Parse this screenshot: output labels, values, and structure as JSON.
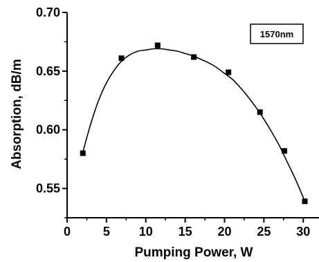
{
  "chart_data": {
    "type": "scatter",
    "title": "",
    "xlabel": "Pumping Power, W",
    "ylabel": "Absorption, dB/m",
    "xlim": [
      0,
      32
    ],
    "ylim": [
      0.525,
      0.7
    ],
    "xticks": [
      "0",
      "5",
      "10",
      "15",
      "20",
      "25",
      "30"
    ],
    "yticks": [
      "0.55",
      "0.60",
      "0.65",
      "0.70"
    ],
    "grid": false,
    "legend_placement": "top-right",
    "series": [
      {
        "name": "1570nm",
        "marker": "square",
        "x": [
          2.0,
          6.9,
          11.5,
          16.1,
          20.5,
          24.5,
          27.6,
          30.2
        ],
        "y": [
          0.58,
          0.661,
          0.672,
          0.662,
          0.649,
          0.615,
          0.582,
          0.539
        ]
      }
    ],
    "fit_curve": {
      "style": "smooth-line",
      "x": [
        2.0,
        3.0,
        4.0,
        5.0,
        6.0,
        7.0,
        8.0,
        9.0,
        10.0,
        11.0,
        12.0,
        13.0,
        14.0,
        15.0,
        16.0,
        17.0,
        18.0,
        19.0,
        20.0,
        21.0,
        22.0,
        23.0,
        24.0,
        25.0,
        26.0,
        27.0,
        28.0,
        29.0,
        30.2
      ],
      "y": [
        0.581,
        0.605,
        0.625,
        0.64,
        0.651,
        0.659,
        0.664,
        0.667,
        0.668,
        0.669,
        0.669,
        0.668,
        0.667,
        0.665,
        0.663,
        0.66,
        0.657,
        0.653,
        0.648,
        0.643,
        0.636,
        0.628,
        0.619,
        0.609,
        0.598,
        0.586,
        0.572,
        0.558,
        0.539
      ]
    },
    "colors": {
      "marker": "#000000",
      "line": "#000000"
    }
  }
}
